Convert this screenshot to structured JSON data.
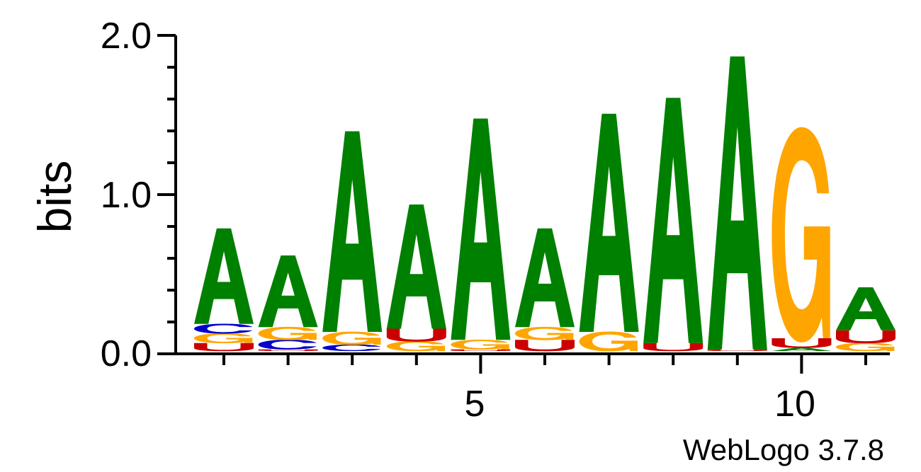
{
  "chart_data": {
    "type": "sequence-logo",
    "ylabel": "bits",
    "ylim": [
      0,
      2.0
    ],
    "y_ticks": [
      "0.0",
      "1.0",
      "2.0"
    ],
    "x_ticks": [
      {
        "position": 5,
        "label": "5"
      },
      {
        "position": 10,
        "label": "10"
      }
    ],
    "grid": false,
    "colors": {
      "A": "#008000",
      "C": "#0000cc",
      "G": "#ffa500",
      "U": "#cc0000"
    },
    "positions": [
      {
        "position": 1,
        "stack": [
          {
            "letter": "U",
            "bits": 0.05
          },
          {
            "letter": "G",
            "bits": 0.06
          },
          {
            "letter": "C",
            "bits": 0.06
          },
          {
            "letter": "A",
            "bits": 0.6
          }
        ]
      },
      {
        "position": 2,
        "stack": [
          {
            "letter": "U",
            "bits": 0.01
          },
          {
            "letter": "C",
            "bits": 0.06
          },
          {
            "letter": "G",
            "bits": 0.08
          },
          {
            "letter": "A",
            "bits": 0.45
          }
        ]
      },
      {
        "position": 3,
        "stack": [
          {
            "letter": "C",
            "bits": 0.04
          },
          {
            "letter": "G",
            "bits": 0.08
          },
          {
            "letter": "A",
            "bits": 1.26
          }
        ]
      },
      {
        "position": 4,
        "stack": [
          {
            "letter": "G",
            "bits": 0.06
          },
          {
            "letter": "U",
            "bits": 0.08
          },
          {
            "letter": "A",
            "bits": 0.78
          }
        ]
      },
      {
        "position": 5,
        "stack": [
          {
            "letter": "U",
            "bits": 0.01
          },
          {
            "letter": "G",
            "bits": 0.06
          },
          {
            "letter": "A",
            "bits": 1.39
          }
        ]
      },
      {
        "position": 6,
        "stack": [
          {
            "letter": "U",
            "bits": 0.07
          },
          {
            "letter": "G",
            "bits": 0.08
          },
          {
            "letter": "A",
            "bits": 0.62
          }
        ]
      },
      {
        "position": 7,
        "stack": [
          {
            "letter": "G",
            "bits": 0.12
          },
          {
            "letter": "A",
            "bits": 1.37
          }
        ]
      },
      {
        "position": 8,
        "stack": [
          {
            "letter": "U",
            "bits": 0.05
          },
          {
            "letter": "A",
            "bits": 1.54
          }
        ]
      },
      {
        "position": 9,
        "stack": [
          {
            "letter": "U",
            "bits": 0.01
          },
          {
            "letter": "A",
            "bits": 1.84
          }
        ]
      },
      {
        "position": 10,
        "stack": [
          {
            "letter": "A",
            "bits": 0.02
          },
          {
            "letter": "U",
            "bits": 0.06
          },
          {
            "letter": "G",
            "bits": 1.3
          }
        ]
      },
      {
        "position": 11,
        "stack": [
          {
            "letter": "G",
            "bits": 0.05
          },
          {
            "letter": "U",
            "bits": 0.08
          },
          {
            "letter": "A",
            "bits": 0.27
          }
        ]
      }
    ]
  },
  "watermark": "WebLogo 3.7.8"
}
